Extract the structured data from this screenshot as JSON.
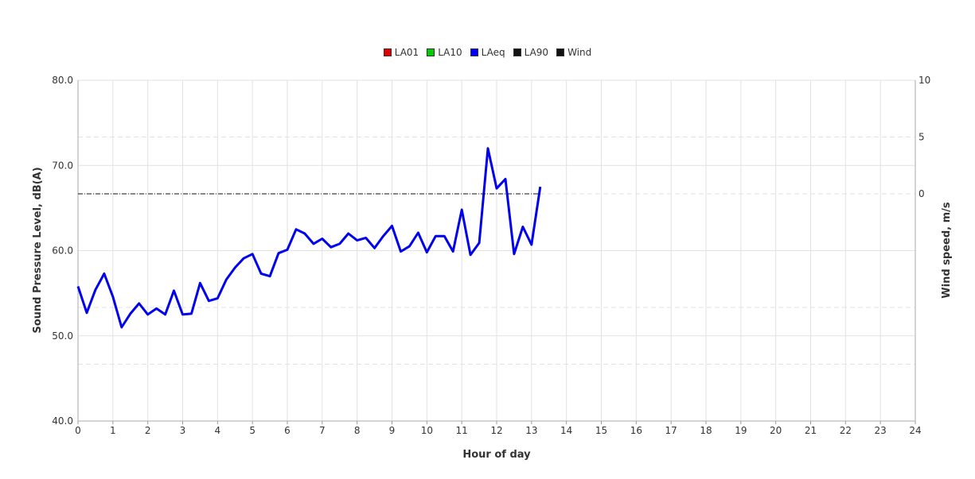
{
  "chart_data": {
    "type": "line",
    "title": "",
    "xlabel": "Hour of day",
    "ylabel": "Sound Pressure Level, dB(A)",
    "y2label": "Wind speed, m/s",
    "xlim": [
      0,
      24
    ],
    "ylim": [
      40,
      80
    ],
    "y2lim": [
      -20,
      10
    ],
    "x_ticks": [
      "0",
      "1",
      "2",
      "3",
      "4",
      "5",
      "6",
      "7",
      "8",
      "9",
      "10",
      "11",
      "12",
      "13",
      "14",
      "15",
      "16",
      "17",
      "18",
      "19",
      "20",
      "21",
      "22",
      "23",
      "24"
    ],
    "y_ticks": [
      "40.0",
      "50.0",
      "60.0",
      "70.0",
      "80.0"
    ],
    "y2_ticks": [
      "0",
      "5",
      "10"
    ],
    "grid": true,
    "legend_position": "top-center",
    "legend": [
      {
        "name": "LA01",
        "color": "#dd0000"
      },
      {
        "name": "LA10",
        "color": "#00cc00"
      },
      {
        "name": "LAeq",
        "color": "#0000ee"
      },
      {
        "name": "LA90",
        "color": "#111111"
      },
      {
        "name": "Wind",
        "color": "#111111"
      }
    ],
    "series": [
      {
        "name": "LAeq",
        "axis": "left",
        "color": "#0000ee",
        "x": [
          0,
          0.25,
          0.5,
          0.75,
          1,
          1.25,
          1.5,
          1.75,
          2,
          2.25,
          2.5,
          2.75,
          3,
          3.25,
          3.5,
          3.75,
          4,
          4.25,
          4.5,
          4.75,
          5,
          5.25,
          5.5,
          5.75,
          6,
          6.25,
          6.5,
          6.75,
          7,
          7.25,
          7.5,
          7.75,
          8,
          8.25,
          8.5,
          8.75,
          9,
          9.25,
          9.5,
          9.75,
          10,
          10.25,
          10.5,
          10.75,
          11,
          11.25,
          11.5,
          11.75,
          12,
          12.25,
          12.5,
          12.75,
          13,
          13.25
        ],
        "values": [
          55.8,
          52.7,
          55.4,
          57.3,
          54.6,
          51.0,
          52.6,
          53.8,
          52.5,
          53.2,
          52.5,
          55.3,
          52.5,
          52.6,
          56.2,
          54.1,
          54.4,
          56.6,
          58.0,
          59.1,
          59.6,
          57.3,
          57.0,
          59.7,
          60.1,
          62.5,
          62.0,
          60.8,
          61.4,
          60.4,
          60.8,
          62.0,
          61.2,
          61.5,
          60.3,
          61.7,
          62.9,
          59.9,
          60.5,
          62.1,
          59.8,
          61.7,
          61.7,
          59.9,
          64.8,
          59.5,
          60.9,
          72.0,
          67.3,
          68.4,
          59.6,
          62.8,
          60.7,
          67.5
        ]
      },
      {
        "name": "Wind",
        "axis": "right",
        "color": "#111111",
        "x": [
          0,
          13.25
        ],
        "values": [
          0,
          0
        ]
      }
    ]
  }
}
